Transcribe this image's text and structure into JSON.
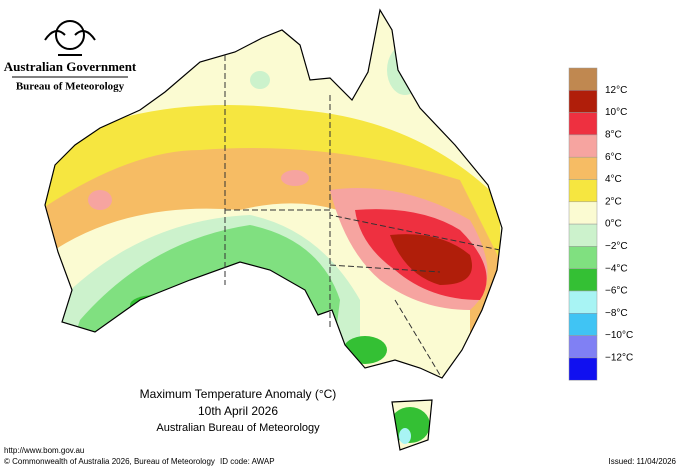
{
  "header": {
    "government": "Australian Government",
    "agency": "Bureau of Meteorology"
  },
  "map": {
    "title": "Maximum Temperature Anomaly (°C)",
    "date": "10th April 2026",
    "source": "Australian Bureau of Meteorology"
  },
  "legend": {
    "colors": [
      "#c08850",
      "#b01e0a",
      "#ee3040",
      "#f6a4a0",
      "#f6bc64",
      "#f6e640",
      "#fbfbd2",
      "#ccf2cc",
      "#80e080",
      "#34c034",
      "#a8f4f4",
      "#40c4f4",
      "#8080f4",
      "#1010f0"
    ],
    "labels": [
      "12°C",
      "10°C",
      "8°C",
      "6°C",
      "4°C",
      "2°C",
      "0°C",
      "−2°C",
      "−4°C",
      "−6°C",
      "−8°C",
      "−10°C",
      "−12°C"
    ]
  },
  "footer": {
    "url": "http://www.bom.gov.au",
    "copyright": "© Commonwealth of Australia 2026, Bureau of Meteorology",
    "id_code": "ID code: AWAP",
    "issued": "Issued: 11/04/2026"
  }
}
